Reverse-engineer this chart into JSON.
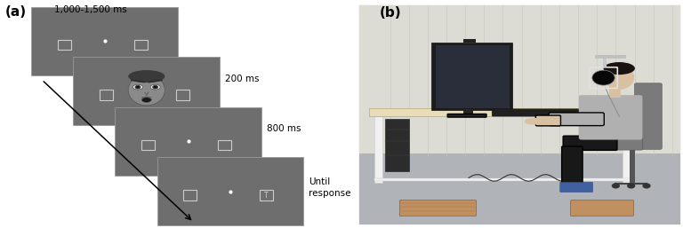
{
  "panel_a_label": "(a)",
  "panel_b_label": "(b)",
  "slide_bg": "#6e6e6e",
  "slide_border": "#999999",
  "white": "#ffffff",
  "labels": [
    "1,000-1,500 ms",
    "200 ms",
    "800 ms",
    "Until\nresponse"
  ],
  "figsize": [
    7.77,
    2.57
  ],
  "dpi": 100
}
